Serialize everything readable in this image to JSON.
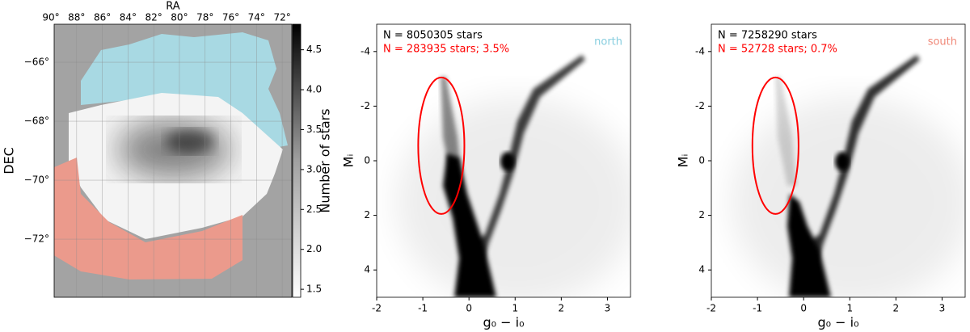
{
  "chart_data": [
    {
      "type": "map",
      "xlabel": "RA",
      "ylabel": "DEC",
      "xlim": [
        89.75,
        71.25
      ],
      "xticks": [
        {
          "value": 90,
          "label": "90°"
        },
        {
          "value": 88,
          "label": "88°"
        },
        {
          "value": 86,
          "label": "86°"
        },
        {
          "value": 84,
          "label": "84°"
        },
        {
          "value": 82,
          "label": "82°"
        },
        {
          "value": 80,
          "label": "80°"
        },
        {
          "value": 78,
          "label": "78°"
        },
        {
          "value": 76,
          "label": "76°"
        },
        {
          "value": 74,
          "label": "74°"
        },
        {
          "value": 72,
          "label": "72°"
        }
      ],
      "ylim": [
        -73.97,
        -64.71
      ],
      "yticks": [
        {
          "value": -66,
          "label": "−66°"
        },
        {
          "value": -68,
          "label": "−68°"
        },
        {
          "value": -70,
          "label": "−70°"
        },
        {
          "value": -72,
          "label": "−72°"
        }
      ],
      "grid": true,
      "colorbar": {
        "label": "Number of stars",
        "clim": [
          1.4,
          4.82
        ],
        "ticks": [
          1.5,
          {
            "value": 2,
            "label": "2.0"
          },
          2.5,
          {
            "value": 3,
            "label": "3.0"
          },
          3.5,
          {
            "value": 4,
            "label": "4.0"
          },
          4.5
        ]
      }
    },
    {
      "type": "hess",
      "xlabel": "g₀ − i₀",
      "ylabel": "Mᵢ",
      "xlim": [
        -2,
        3.5
      ],
      "xticks": [
        -2,
        -1,
        0,
        1,
        2,
        3
      ],
      "ylim": [
        -5,
        5
      ],
      "y_inverted": true,
      "yticks": [
        -4,
        -2,
        0,
        2,
        4
      ],
      "total_label": "N = 8050305 stars",
      "selected_label": "N = 283935 stars; 3.5%",
      "selected_color": "#ff0000",
      "region": "north",
      "region_color": "#87cedf",
      "ellipse": {
        "center": [
          -0.6,
          -0.55
        ],
        "width": 1.0,
        "height": 5.0,
        "color": "#ff0000"
      }
    },
    {
      "type": "hess",
      "xlabel": "g₀ − i₀",
      "ylabel": "Mᵢ",
      "xlim": [
        -2,
        3.5
      ],
      "xticks": [
        -2,
        -1,
        0,
        1,
        2,
        3
      ],
      "ylim": [
        -5,
        5
      ],
      "y_inverted": true,
      "yticks": [
        -4,
        -2,
        0,
        2,
        4
      ],
      "total_label": "N = 7258290 stars",
      "selected_label": "N = 52728 stars; 0.7%",
      "selected_color": "#ff0000",
      "region": "south",
      "region_color": "#f08878",
      "ellipse": {
        "center": [
          -0.61,
          -0.55
        ],
        "width": 1.0,
        "height": 5.0,
        "color": "#ff0000"
      }
    }
  ]
}
